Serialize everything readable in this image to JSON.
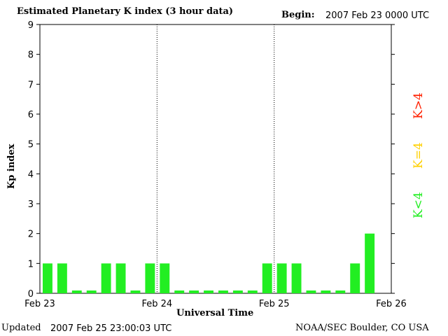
{
  "header": {
    "title": "Estimated Planetary K index (3 hour data)",
    "begin_label": "Begin:",
    "begin_value": "2007 Feb 23 0000 UTC"
  },
  "footer": {
    "updated_label": "Updated",
    "updated_value": "2007 Feb 25 23:00:03 UTC",
    "source": "NOAA/SEC Boulder, CO USA"
  },
  "legend": {
    "high": "K>4",
    "equal": "K=4",
    "low": "K<4",
    "colors": {
      "high": "#ff2000",
      "equal": "#ffd000",
      "low": "#22ee22"
    }
  },
  "chart_data": {
    "type": "bar",
    "title": "Estimated Planetary K index (3 hour data)",
    "xlabel": "Universal Time",
    "ylabel": "Kp index",
    "ylim": [
      0,
      9
    ],
    "yticks": [
      0,
      1,
      2,
      3,
      4,
      5,
      6,
      7,
      8,
      9
    ],
    "xtick_labels": [
      "Feb 23",
      "Feb 24",
      "Feb 25",
      "Feb 26"
    ],
    "bars_per_day": 8,
    "values": [
      1,
      1,
      0,
      0,
      1,
      1,
      0,
      1,
      1,
      0,
      0,
      0,
      0,
      0,
      0,
      1,
      1,
      1,
      0,
      0,
      0,
      1,
      2
    ],
    "bar_color": "#22ee22",
    "day_separators": "dotted"
  }
}
